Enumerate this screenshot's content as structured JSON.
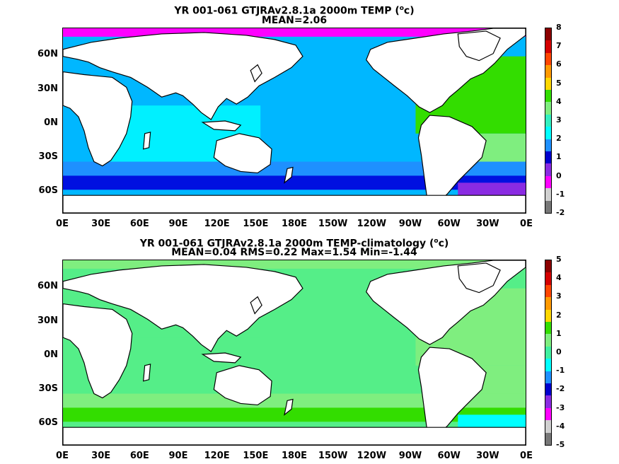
{
  "panels": [
    {
      "title_main": "YR 001-061 GTJRAv2.8.1a 2000m TEMP (",
      "title_sup": "o",
      "title_end": "c)",
      "subtitle": "MEAN=2.06",
      "lat_labels": [
        "60N",
        "30N",
        "0N",
        "30S",
        "60S"
      ],
      "lon_labels": [
        "0E",
        "30E",
        "60E",
        "90E",
        "120E",
        "150E",
        "180E",
        "150W",
        "120W",
        "90W",
        "60W",
        "30W",
        "0E"
      ],
      "colorbar": {
        "labels": [
          "8",
          "7",
          "6",
          "5",
          "4",
          "3",
          "2",
          "1",
          "0",
          "-1",
          "-2"
        ],
        "colors": [
          "#8b0000",
          "#d40000",
          "#ff4500",
          "#ff9900",
          "#ffd700",
          "#33dd00",
          "#7fee7f",
          "#33f0c0",
          "#00ffff",
          "#1e90ff",
          "#0000cd",
          "#8a2be2",
          "#ff00ff",
          "#d0d0d0",
          "#777777"
        ]
      },
      "regions": {
        "pacific": "#00b7ff",
        "indian": "#00f0ff",
        "southern": "#1e90ff",
        "deep_southern": "#0010e0",
        "weddell": "#8a2be2",
        "arctic": "#ff00ff",
        "atlantic": "#33dd00",
        "south_atlantic": "#7fee7f",
        "labrador": "#ffd700"
      }
    },
    {
      "title_main": "YR 001-061 GTJRAv2.8.1a 2000m TEMP-climatology (",
      "title_sup": "o",
      "title_end": "c)",
      "subtitle": "MEAN=0.04   RMS=0.22   Max=1.54   Min=-1.44",
      "lat_labels": [
        "60N",
        "30N",
        "0N",
        "30S",
        "60S"
      ],
      "lon_labels": [
        "0E",
        "30E",
        "60E",
        "90E",
        "120E",
        "150E",
        "180E",
        "150W",
        "120W",
        "90W",
        "60W",
        "30W",
        "0E"
      ],
      "colorbar": {
        "labels": [
          "5",
          "4",
          "3",
          "2",
          "1",
          "0",
          "-1",
          "-2",
          "-3",
          "-4",
          "-5"
        ],
        "colors": [
          "#8b0000",
          "#d40000",
          "#ff4500",
          "#ff9900",
          "#ffd700",
          "#33dd00",
          "#7fee7f",
          "#40f0a0",
          "#00ffff",
          "#1e90ff",
          "#0000cd",
          "#8a2be2",
          "#ff00ff",
          "#d0d0d0",
          "#777777"
        ]
      },
      "regions": {
        "pacific": "#55ee88",
        "indian": "#55ee88",
        "southern": "#7fee7f",
        "deep_southern": "#33dd00",
        "weddell": "#00ffff",
        "arctic": "#7fee7f",
        "atlantic": "#7fee7f",
        "south_atlantic": "#7fee7f",
        "labrador": "#ffd700"
      }
    }
  ]
}
